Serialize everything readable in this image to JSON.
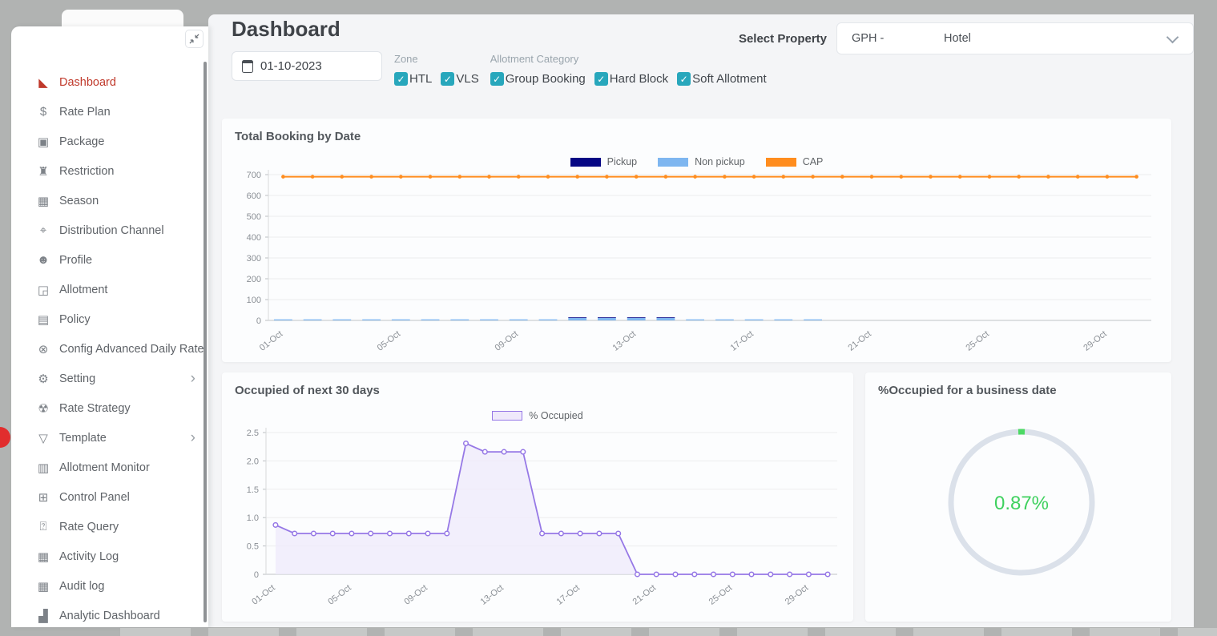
{
  "colors": {
    "active_red": "#c0392b",
    "checkbox_teal": "#28a7bc",
    "frame_gray": "#b1b3b2"
  },
  "sidebar": {
    "items": [
      {
        "id": "dashboard",
        "label": "Dashboard",
        "icon": "area-chart-icon",
        "glyph": "◣",
        "active": true,
        "has_submenu": false
      },
      {
        "id": "rate-plan",
        "label": "Rate Plan",
        "icon": "dollar-icon",
        "glyph": "$",
        "active": false,
        "has_submenu": false
      },
      {
        "id": "package",
        "label": "Package",
        "icon": "gift-icon",
        "glyph": "▣",
        "active": false,
        "has_submenu": false
      },
      {
        "id": "restriction",
        "label": "Restriction",
        "icon": "castle-icon",
        "glyph": "♜",
        "active": false,
        "has_submenu": false
      },
      {
        "id": "season",
        "label": "Season",
        "icon": "calendar-icon",
        "glyph": "▦",
        "active": false,
        "has_submenu": false
      },
      {
        "id": "distribution-channel",
        "label": "Distribution Channel",
        "icon": "broadcast-icon",
        "glyph": "⌖",
        "active": false,
        "has_submenu": false
      },
      {
        "id": "profile",
        "label": "Profile",
        "icon": "face-icon",
        "glyph": "☻",
        "active": false,
        "has_submenu": false
      },
      {
        "id": "allotment",
        "label": "Allotment",
        "icon": "shapes-icon",
        "glyph": "◲",
        "active": false,
        "has_submenu": false
      },
      {
        "id": "policy",
        "label": "Policy",
        "icon": "save-icon",
        "glyph": "▤",
        "active": false,
        "has_submenu": false
      },
      {
        "id": "config-advanced-daily-rate",
        "label": "Config Advanced Daily Rate",
        "icon": "circle-x-icon",
        "glyph": "⊗",
        "active": false,
        "has_submenu": false
      },
      {
        "id": "setting",
        "label": "Setting",
        "icon": "gear-icon",
        "glyph": "⚙",
        "active": false,
        "has_submenu": true
      },
      {
        "id": "rate-strategy",
        "label": "Rate Strategy",
        "icon": "radiation-icon",
        "glyph": "☢",
        "active": false,
        "has_submenu": false
      },
      {
        "id": "template",
        "label": "Template",
        "icon": "funnel-icon",
        "glyph": "▽",
        "active": false,
        "has_submenu": true
      },
      {
        "id": "allotment-monitor",
        "label": "Allotment Monitor",
        "icon": "monitor-icon",
        "glyph": "▥",
        "active": false,
        "has_submenu": false
      },
      {
        "id": "control-panel",
        "label": "Control Panel",
        "icon": "tiles-icon",
        "glyph": "⊞",
        "active": false,
        "has_submenu": false
      },
      {
        "id": "rate-query",
        "label": "Rate Query",
        "icon": "calendar-question-icon",
        "glyph": "⍰",
        "active": false,
        "has_submenu": false
      },
      {
        "id": "activity-log",
        "label": "Activity Log",
        "icon": "table-icon",
        "glyph": "▦",
        "active": false,
        "has_submenu": false
      },
      {
        "id": "audit-log",
        "label": "Audit log",
        "icon": "table-icon",
        "glyph": "▦",
        "active": false,
        "has_submenu": false
      },
      {
        "id": "analytic-dashboard",
        "label": "Analytic Dashboard",
        "icon": "bar-chart-icon",
        "glyph": "▟",
        "active": false,
        "has_submenu": false
      }
    ]
  },
  "header": {
    "title": "Dashboard",
    "select_property_label": "Select Property",
    "property_code": "GPH -",
    "property_name": "Hotel"
  },
  "filters": {
    "date_value": "01-10-2023",
    "zone": {
      "label": "Zone",
      "options": [
        {
          "label": "HTL",
          "checked": true
        },
        {
          "label": "VLS",
          "checked": true
        }
      ]
    },
    "allotment_category": {
      "label": "Allotment Category",
      "options": [
        {
          "label": "Group Booking",
          "checked": true
        },
        {
          "label": "Hard Block",
          "checked": true
        },
        {
          "label": "Soft Allotment",
          "checked": true
        }
      ]
    }
  },
  "chart_data": [
    {
      "id": "total-booking-by-date",
      "type": "bar",
      "title": "Total Booking by Date",
      "categories": [
        "01-Oct",
        "02-Oct",
        "03-Oct",
        "04-Oct",
        "05-Oct",
        "06-Oct",
        "07-Oct",
        "08-Oct",
        "09-Oct",
        "10-Oct",
        "11-Oct",
        "12-Oct",
        "13-Oct",
        "14-Oct",
        "15-Oct",
        "16-Oct",
        "17-Oct",
        "18-Oct",
        "19-Oct",
        "20-Oct",
        "21-Oct",
        "22-Oct",
        "23-Oct",
        "24-Oct",
        "25-Oct",
        "26-Oct",
        "27-Oct",
        "28-Oct",
        "29-Oct",
        "30-Oct"
      ],
      "series": [
        {
          "name": "Pickup",
          "type": "bar",
          "color": "#060684",
          "values": [
            0,
            0,
            0,
            0,
            0,
            0,
            0,
            0,
            0,
            0,
            3,
            3,
            3,
            3,
            0,
            0,
            0,
            0,
            0,
            0,
            0,
            0,
            0,
            0,
            0,
            0,
            0,
            0,
            0,
            0
          ]
        },
        {
          "name": "Non pickup",
          "type": "bar",
          "color": "#7eb6f0",
          "values": [
            5,
            5,
            5,
            5,
            5,
            5,
            5,
            5,
            5,
            5,
            12,
            12,
            12,
            12,
            5,
            5,
            5,
            5,
            5,
            0,
            0,
            0,
            0,
            0,
            0,
            0,
            0,
            0,
            0,
            0
          ]
        },
        {
          "name": "CAP",
          "type": "line",
          "color": "#ff8d1e",
          "values": [
            690,
            690,
            690,
            690,
            690,
            690,
            690,
            690,
            690,
            690,
            690,
            690,
            690,
            690,
            690,
            690,
            690,
            690,
            690,
            690,
            690,
            690,
            690,
            690,
            690,
            690,
            690,
            690,
            690,
            690
          ]
        }
      ],
      "ylim": [
        0,
        700
      ],
      "y_ticks": [
        0,
        100,
        200,
        300,
        400,
        500,
        600,
        700
      ],
      "x_tick_step": 4,
      "legend_position": "top-center",
      "grid": true
    },
    {
      "id": "occupied-next-30-days",
      "type": "area",
      "title": "Occupied of next 30 days",
      "categories": [
        "01-Oct",
        "02-Oct",
        "03-Oct",
        "04-Oct",
        "05-Oct",
        "06-Oct",
        "07-Oct",
        "08-Oct",
        "09-Oct",
        "10-Oct",
        "11-Oct",
        "12-Oct",
        "13-Oct",
        "14-Oct",
        "15-Oct",
        "16-Oct",
        "17-Oct",
        "18-Oct",
        "19-Oct",
        "20-Oct",
        "21-Oct",
        "22-Oct",
        "23-Oct",
        "24-Oct",
        "25-Oct",
        "26-Oct",
        "27-Oct",
        "28-Oct",
        "29-Oct",
        "30-Oct"
      ],
      "series": [
        {
          "name": "% Occupied",
          "color": "#9678e6",
          "fill": "#efe9fb",
          "values": [
            0.87,
            0.72,
            0.72,
            0.72,
            0.72,
            0.72,
            0.72,
            0.72,
            0.72,
            0.72,
            2.31,
            2.16,
            2.16,
            2.16,
            0.72,
            0.72,
            0.72,
            0.72,
            0.72,
            0,
            0,
            0,
            0,
            0,
            0,
            0,
            0,
            0,
            0,
            0
          ]
        }
      ],
      "ylim": [
        0,
        2.5
      ],
      "y_ticks": [
        0,
        0.5,
        1,
        1.5,
        2,
        2.5
      ],
      "y_tick_labels": [
        "0",
        "0.5",
        "1.0",
        "1.5",
        "2.0",
        "2.5"
      ],
      "x_tick_step": 4,
      "legend_position": "top-center",
      "grid": true
    },
    {
      "id": "occupied-business-date",
      "type": "donut",
      "title": "%Occupied for a business date",
      "value": 0.87,
      "label": "0.87%",
      "value_color": "#3fd15f",
      "segment_color": "#4cd964",
      "ring_color": "#dbe1ea"
    }
  ]
}
